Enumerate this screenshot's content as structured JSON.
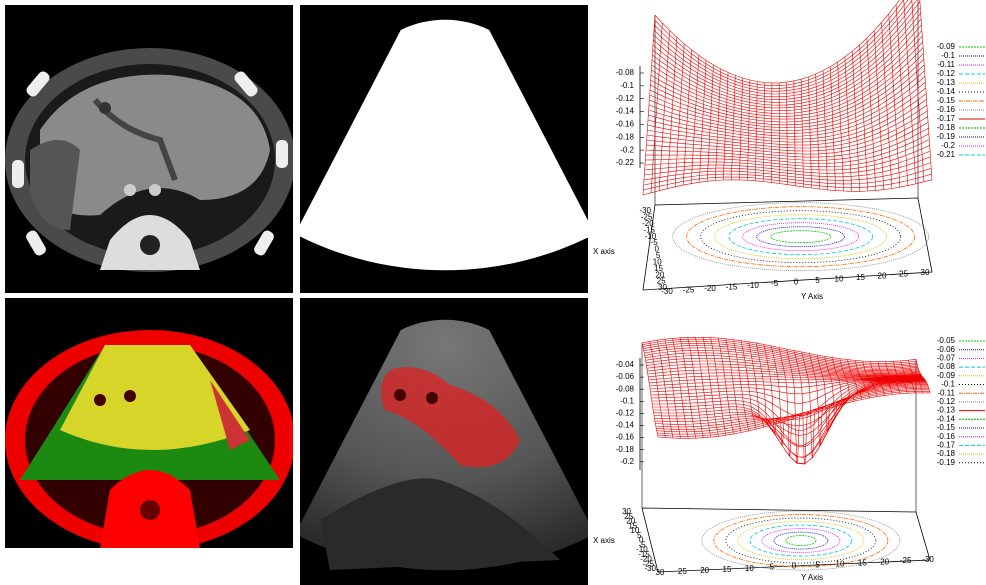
{
  "figure": {
    "plots": [
      {
        "z_ticks": [
          -0.08,
          -0.1,
          -0.12,
          -0.14,
          -0.16,
          -0.18,
          -0.2,
          -0.22
        ],
        "legend": [
          -0.09,
          -0.1,
          -0.11,
          -0.12,
          -0.13,
          -0.14,
          -0.15,
          -0.16,
          -0.17,
          -0.18,
          -0.19,
          -0.2,
          -0.21
        ],
        "x_axis_ticks": [
          -30,
          -25,
          -20,
          -15,
          -10,
          -5,
          0,
          5,
          10,
          15,
          20,
          25,
          30
        ],
        "y_axis_ticks": [
          -30,
          -25,
          -20,
          -15,
          -10,
          -5,
          0,
          5,
          10,
          15,
          20,
          25,
          30
        ],
        "x_axis_label": "X axis",
        "y_axis_label": "Y Axis"
      },
      {
        "z_ticks": [
          -0.04,
          -0.06,
          -0.08,
          -0.1,
          -0.12,
          -0.14,
          -0.16,
          -0.18,
          -0.2
        ],
        "legend": [
          -0.05,
          -0.06,
          -0.07,
          -0.08,
          -0.09,
          -0.1,
          -0.11,
          -0.12,
          -0.13,
          -0.14,
          -0.15,
          -0.16,
          -0.17,
          -0.18,
          -0.19
        ],
        "x_axis_ticks": [
          30,
          25,
          20,
          15,
          10,
          5,
          0,
          -5,
          -10,
          -15,
          -20,
          -25,
          -30
        ],
        "y_axis_ticks": [
          30,
          25,
          20,
          15,
          10,
          5,
          0,
          -5,
          -10,
          -15,
          -20,
          -25,
          -30
        ],
        "x_axis_label": "X axis",
        "y_axis_label": "Y Axis"
      }
    ]
  }
}
